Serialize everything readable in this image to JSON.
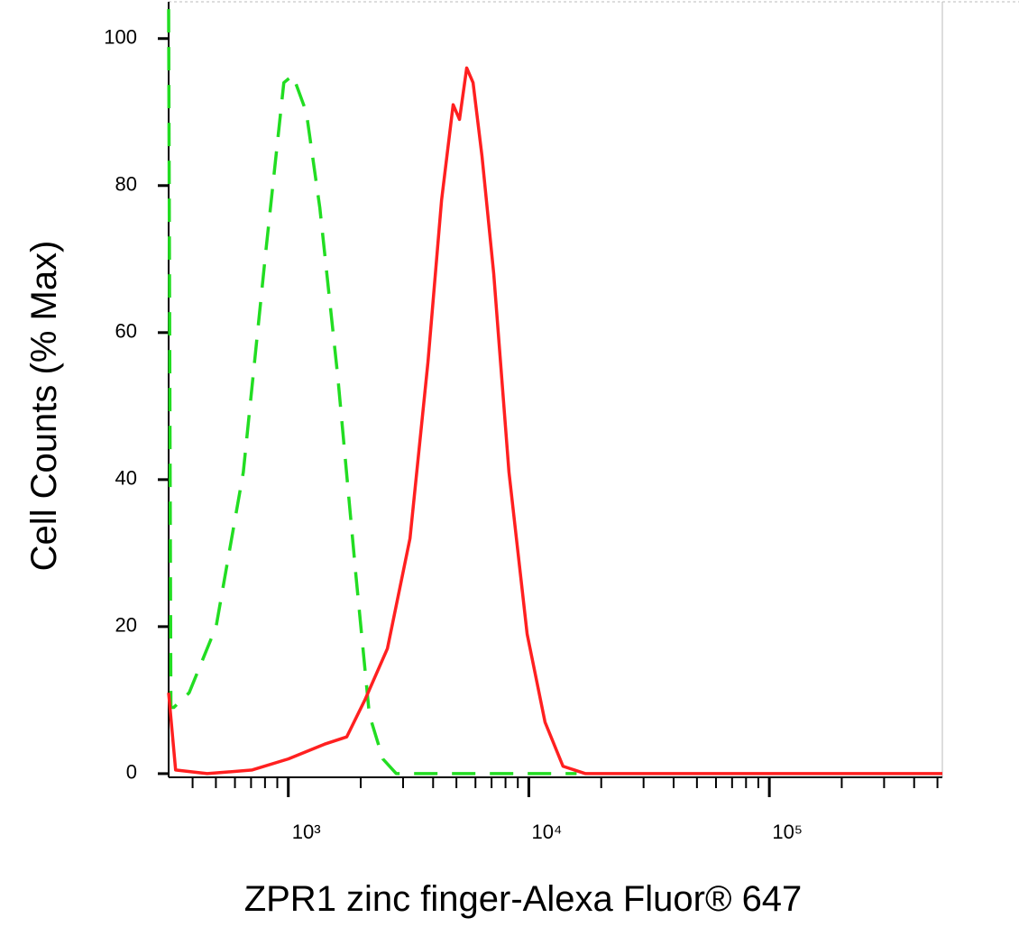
{
  "chart_data": {
    "type": "line",
    "xlabel": "ZPR1 zinc finger-Alexa Fluor® 647",
    "ylabel": "Cell Counts (% Max)",
    "xscale": "log",
    "xlim": [
      318,
      524000
    ],
    "ylim": [
      -0.5,
      105
    ],
    "xticks": [
      {
        "value": 1000,
        "label": "10³"
      },
      {
        "value": 10000,
        "label": "10⁴"
      },
      {
        "value": 100000,
        "label": "10⁵"
      }
    ],
    "xminor": [
      400,
      500,
      600,
      700,
      800,
      900,
      2000,
      3000,
      4000,
      5000,
      6000,
      7000,
      8000,
      9000,
      20000,
      30000,
      40000,
      50000,
      60000,
      70000,
      80000,
      90000,
      200000,
      300000,
      400000,
      500000
    ],
    "yticks": [
      0,
      20,
      40,
      60,
      80,
      100
    ],
    "series": [
      {
        "color": "#22dd22",
        "linestyle": "dashed",
        "x": [
          318,
          325,
          334,
          387,
          501,
          650,
          806,
          958,
          1044,
          1188,
          1352,
          1606,
          1910,
          2173,
          2473,
          2812,
          15800
        ],
        "values": [
          104,
          9,
          9,
          11,
          20,
          41,
          71,
          94,
          95,
          90,
          77,
          54,
          27,
          8,
          2,
          0,
          0
        ]
      },
      {
        "color": "#ff2020",
        "linestyle": "solid",
        "x": [
          318,
          340,
          460,
          708,
          1000,
          1412,
          1750,
          2080,
          2582,
          3206,
          3808,
          4337,
          4846,
          5150,
          5517,
          5864,
          6387,
          7147,
          8270,
          9840,
          11680,
          13870,
          17200,
          524000
        ],
        "values": [
          11,
          0.5,
          0,
          0.5,
          2,
          4,
          5,
          10,
          17,
          32,
          56,
          78,
          91,
          89,
          96,
          94,
          84,
          68,
          41,
          19,
          7,
          1,
          0,
          0
        ]
      }
    ]
  }
}
